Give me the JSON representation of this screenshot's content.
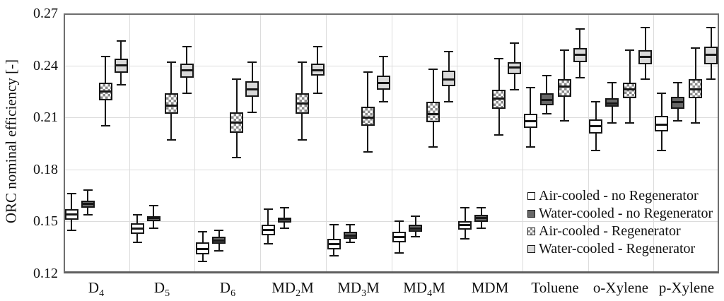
{
  "chart_data": {
    "type": "boxplot",
    "title": "",
    "xlabel": "",
    "ylabel": "ORC nominal efficiency [-]",
    "ylim": [
      0.12,
      0.27
    ],
    "y_ticks": [
      0.27,
      0.24,
      0.21,
      0.18,
      0.15,
      0.12
    ],
    "grid": true,
    "legend_position": "inside-bottom-right",
    "categories": [
      {
        "pre": "D",
        "sub": "4",
        "post": ""
      },
      {
        "pre": "D",
        "sub": "5",
        "post": ""
      },
      {
        "pre": "D",
        "sub": "6",
        "post": ""
      },
      {
        "pre": "MD",
        "sub": "2",
        "post": "M"
      },
      {
        "pre": "MD",
        "sub": "3",
        "post": "M"
      },
      {
        "pre": "MD",
        "sub": "4",
        "post": "M"
      },
      {
        "pre": "MDM",
        "sub": "",
        "post": ""
      },
      {
        "pre": "Toluene",
        "sub": "",
        "post": ""
      },
      {
        "pre": "o-Xylene",
        "sub": "",
        "post": ""
      },
      {
        "pre": "p-Xylene",
        "sub": "",
        "post": ""
      }
    ],
    "box_value_order": [
      "whisker_low",
      "q1",
      "median",
      "q3",
      "whisker_high"
    ],
    "series": [
      {
        "name": "Air-cooled - no Regenerator",
        "pattern": "solid",
        "fill": "#ffffff",
        "border": "#161616",
        "values": [
          [
            0.145,
            0.151,
            0.154,
            0.157,
            0.166
          ],
          [
            0.138,
            0.143,
            0.146,
            0.149,
            0.154
          ],
          [
            0.127,
            0.131,
            0.134,
            0.138,
            0.144
          ],
          [
            0.137,
            0.142,
            0.145,
            0.148,
            0.157
          ],
          [
            0.13,
            0.134,
            0.137,
            0.14,
            0.148
          ],
          [
            0.132,
            0.138,
            0.141,
            0.144,
            0.15
          ],
          [
            0.14,
            0.145,
            0.148,
            0.15,
            0.158
          ],
          [
            0.193,
            0.204,
            0.208,
            0.212,
            0.227
          ],
          [
            0.191,
            0.201,
            0.205,
            0.209,
            0.219
          ],
          [
            0.191,
            0.202,
            0.206,
            0.211,
            0.224
          ]
        ]
      },
      {
        "name": "Water-cooled - no Regenerator",
        "pattern": "solid",
        "fill": "#686868",
        "border": "#161616",
        "values": [
          [
            0.154,
            0.158,
            0.16,
            0.162,
            0.168
          ],
          [
            0.146,
            0.15,
            0.152,
            0.153,
            0.159
          ],
          [
            0.133,
            0.137,
            0.139,
            0.141,
            0.145
          ],
          [
            0.146,
            0.149,
            0.151,
            0.152,
            0.158
          ],
          [
            0.138,
            0.14,
            0.142,
            0.144,
            0.148
          ],
          [
            0.141,
            0.144,
            0.146,
            0.148,
            0.153
          ],
          [
            0.146,
            0.15,
            0.152,
            0.154,
            0.158
          ],
          [
            0.212,
            0.217,
            0.22,
            0.224,
            0.234
          ],
          [
            0.207,
            0.216,
            0.218,
            0.221,
            0.23
          ],
          [
            0.208,
            0.215,
            0.219,
            0.222,
            0.23
          ]
        ]
      },
      {
        "name": "Air-cooled - Regenerator",
        "pattern": "checker",
        "fill": "#8a8a8a",
        "fill2": "#ffffff",
        "border": "#161616",
        "values": [
          [
            0.205,
            0.22,
            0.225,
            0.23,
            0.245
          ],
          [
            0.197,
            0.212,
            0.217,
            0.224,
            0.242
          ],
          [
            0.187,
            0.201,
            0.207,
            0.213,
            0.232
          ],
          [
            0.197,
            0.212,
            0.218,
            0.224,
            0.242
          ],
          [
            0.19,
            0.205,
            0.21,
            0.216,
            0.236
          ],
          [
            0.193,
            0.207,
            0.212,
            0.219,
            0.238
          ],
          [
            0.2,
            0.215,
            0.221,
            0.226,
            0.244
          ],
          [
            0.208,
            0.222,
            0.228,
            0.232,
            0.249
          ],
          [
            0.207,
            0.221,
            0.226,
            0.23,
            0.249
          ],
          [
            0.207,
            0.221,
            0.226,
            0.232,
            0.25
          ]
        ]
      },
      {
        "name": "Water-cooled - Regenerator",
        "pattern": "solid",
        "fill": "#d9d9d9",
        "border": "#161616",
        "values": [
          [
            0.229,
            0.236,
            0.24,
            0.244,
            0.254
          ],
          [
            0.224,
            0.233,
            0.237,
            0.241,
            0.251
          ],
          [
            0.213,
            0.222,
            0.226,
            0.231,
            0.242
          ],
          [
            0.224,
            0.234,
            0.237,
            0.241,
            0.251
          ],
          [
            0.219,
            0.226,
            0.23,
            0.234,
            0.245
          ],
          [
            0.219,
            0.228,
            0.232,
            0.237,
            0.248
          ],
          [
            0.226,
            0.235,
            0.239,
            0.242,
            0.253
          ],
          [
            0.233,
            0.242,
            0.246,
            0.25,
            0.261
          ],
          [
            0.232,
            0.241,
            0.245,
            0.249,
            0.262
          ],
          [
            0.232,
            0.241,
            0.246,
            0.251,
            0.262
          ]
        ]
      }
    ],
    "colors": {
      "grid": "#dcdcdc",
      "frame": "#6e6e6e",
      "line": "#161616",
      "background": "#ffffff"
    }
  }
}
